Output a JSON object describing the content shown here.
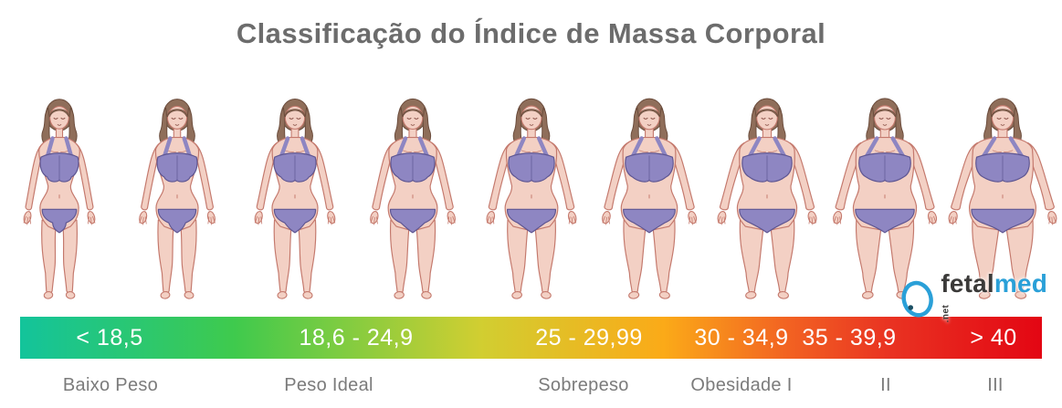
{
  "title": "Classificação do Índice de Massa Corporal",
  "scale": {
    "segments": [
      {
        "range": "< 18,5",
        "label": "Baixo Peso"
      },
      {
        "range": "18,6 - 24,9",
        "label": "Peso Ideal"
      },
      {
        "range": "25 - 29,99",
        "label": "Sobrepeso"
      },
      {
        "range": "30 - 34,9",
        "label": "Obesidade I"
      },
      {
        "range": "35 - 39,9",
        "label": "II"
      },
      {
        "range": "> 40",
        "label": "III"
      }
    ],
    "gradient_colors": [
      "#13c49b",
      "#3fca4d",
      "#d1ce31",
      "#fbaa18",
      "#f26322",
      "#e93322",
      "#e30613"
    ],
    "range_text_color": "#ffffff"
  },
  "figures": {
    "count": 9,
    "levels": [
      1,
      2,
      3,
      4,
      5,
      6,
      7,
      8,
      9
    ]
  },
  "logo": {
    "part1": "fetal",
    "part2": "med",
    "suffix": ".net",
    "accent_color": "#2aa0d8",
    "text_color": "#3b3a39"
  },
  "colors": {
    "title_text": "#6c6c6c",
    "label_text": "#7b7b7b",
    "skin": "#f3d0c4",
    "skin_outline": "#c4796d",
    "hair": "#8f6e5a",
    "hair_outline": "#6b4c3c",
    "bikini": "#8e86c2",
    "bikini_outline": "#5e5692",
    "face_detail": "#8a5147"
  }
}
